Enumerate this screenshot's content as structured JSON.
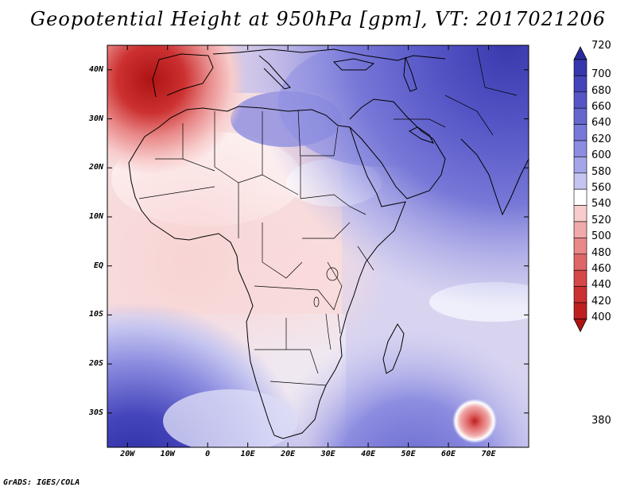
{
  "title": "Geopotential Height at 950hPa [gpm], VT: 2017021206",
  "credit": "GrADS: IGES/COLA",
  "map": {
    "region": "Africa",
    "variable": "Geopotential Height",
    "level": "950hPa",
    "units": "gpm",
    "valid_time": "2017021206",
    "lon_range": [
      -25,
      80
    ],
    "lat_range": [
      -37,
      45
    ],
    "lat_ticks": [
      {
        "value": 40,
        "label": "40N"
      },
      {
        "value": 30,
        "label": "30N"
      },
      {
        "value": 20,
        "label": "20N"
      },
      {
        "value": 10,
        "label": "10N"
      },
      {
        "value": 0,
        "label": "EQ"
      },
      {
        "value": -10,
        "label": "10S"
      },
      {
        "value": -20,
        "label": "20S"
      },
      {
        "value": -30,
        "label": "30S"
      }
    ],
    "lon_ticks": [
      {
        "value": -20,
        "label": "20W"
      },
      {
        "value": -10,
        "label": "10W"
      },
      {
        "value": 0,
        "label": "0"
      },
      {
        "value": 10,
        "label": "10E"
      },
      {
        "value": 20,
        "label": "20E"
      },
      {
        "value": 30,
        "label": "30E"
      },
      {
        "value": 40,
        "label": "40E"
      },
      {
        "value": 50,
        "label": "50E"
      },
      {
        "value": 60,
        "label": "60E"
      },
      {
        "value": 70,
        "label": "70E"
      }
    ]
  },
  "colorbar": {
    "levels": [
      "720",
      "700",
      "680",
      "660",
      "640",
      "620",
      "600",
      "580",
      "560",
      "540",
      "520",
      "500",
      "480",
      "460",
      "440",
      "420",
      "400",
      "380"
    ],
    "colors": [
      "#2a2a9e",
      "#3636ad",
      "#4444bb",
      "#5555c6",
      "#6666cf",
      "#7878d8",
      "#8c8ce0",
      "#a4a4e8",
      "#c4c4f0",
      "#ffffff",
      "#f8cccc",
      "#f0aaaa",
      "#e88888",
      "#df6666",
      "#d64848",
      "#cc3030",
      "#be2020",
      "#ae1414"
    ]
  }
}
